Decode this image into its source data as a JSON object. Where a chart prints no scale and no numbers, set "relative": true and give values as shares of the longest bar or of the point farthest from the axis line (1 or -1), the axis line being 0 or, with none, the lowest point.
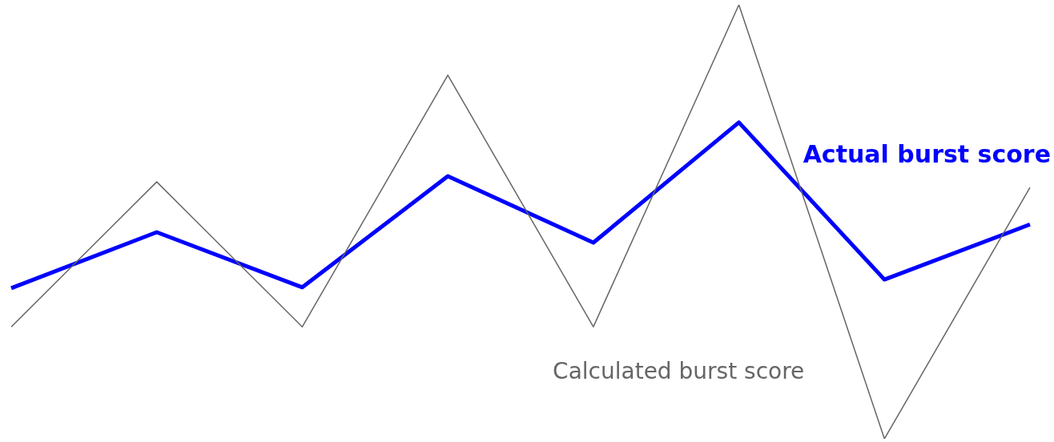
{
  "chart_data": {
    "type": "line",
    "relative": true,
    "legend": false,
    "marker": "none",
    "categories": [
      null,
      null,
      null,
      null,
      null,
      null,
      null,
      null
    ],
    "series": [
      {
        "name": "Calculated burst score",
        "color": "#666666",
        "values": [
          0.258,
          0.592,
          0.258,
          0.838,
          0.258,
          1,
          0,
          0.579
        ]
      },
      {
        "name": "Actual burst score",
        "color": "#0000ff",
        "values": [
          0.347,
          0.476,
          0.349,
          0.605,
          0.452,
          0.729,
          0.367,
          0.494
        ]
      }
    ]
  }
}
